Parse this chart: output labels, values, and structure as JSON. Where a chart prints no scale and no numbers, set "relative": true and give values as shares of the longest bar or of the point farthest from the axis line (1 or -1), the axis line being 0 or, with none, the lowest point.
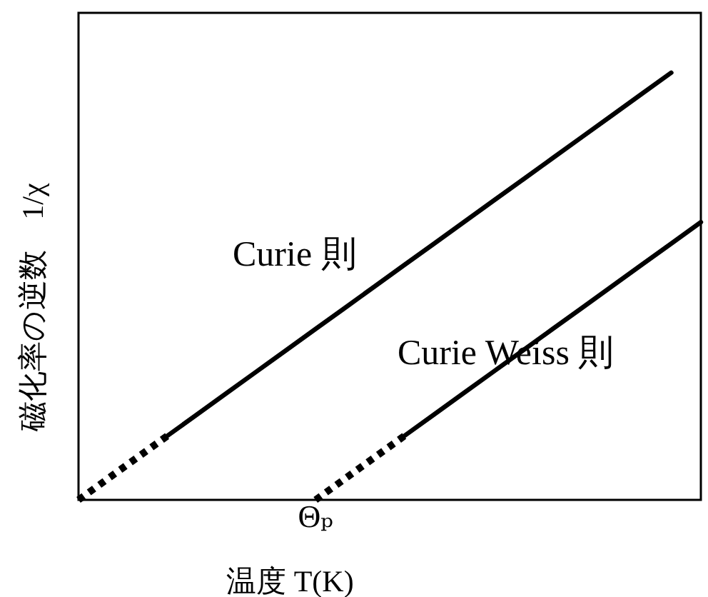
{
  "chart_data": {
    "type": "line",
    "relative": true,
    "xlabel": "温度 T(K)",
    "ylabel": "磁化率の逆数　1/χ",
    "annotations": [
      "Θₚ"
    ],
    "categories": [
      null,
      null,
      null,
      null,
      null,
      null,
      null,
      null,
      null,
      null,
      null,
      null,
      null,
      null,
      null,
      null,
      null,
      null,
      null,
      null,
      null,
      null
    ],
    "series": [
      {
        "color": "#000000",
        "line_style": "dotted",
        "values": [
          0,
          0.05,
          0.1,
          0.15,
          null,
          null,
          null,
          null,
          null,
          null,
          null,
          null,
          null,
          null,
          null,
          null,
          null,
          null,
          null,
          null,
          null,
          null
        ]
      },
      {
        "name": "Curie 則",
        "color": "#000000",
        "line_style": "solid",
        "values": [
          null,
          null,
          null,
          0.15,
          0.2,
          0.25,
          0.3,
          0.35,
          0.4,
          0.45,
          0.5,
          0.55,
          0.6,
          0.65,
          0.7,
          0.75,
          0.8,
          0.85,
          0.9,
          0.95,
          1,
          null
        ]
      },
      {
        "color": "#000000",
        "line_style": "dotted",
        "values": [
          null,
          null,
          null,
          null,
          null,
          null,
          null,
          null,
          0,
          0.05,
          0.1,
          0.15,
          null,
          null,
          null,
          null,
          null,
          null,
          null,
          null,
          null,
          null
        ]
      },
      {
        "name": "Curie Weiss 則",
        "color": "#000000",
        "line_style": "solid",
        "values": [
          null,
          null,
          null,
          null,
          null,
          null,
          null,
          null,
          null,
          null,
          null,
          0.15,
          0.2,
          0.25,
          0.3,
          0.35,
          0.4,
          0.45,
          0.5,
          0.55,
          0.6,
          0.65
        ]
      }
    ]
  }
}
